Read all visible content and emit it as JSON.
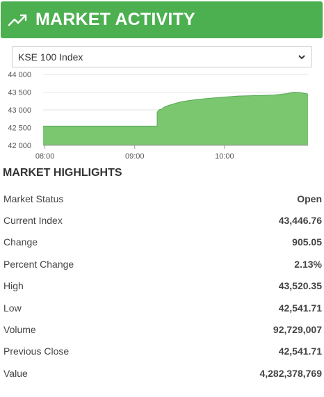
{
  "header": {
    "title": "MARKET ACTIVITY",
    "icon": "trending-up-icon",
    "color": "#4caf50"
  },
  "index_select": {
    "selected": "KSE 100 Index"
  },
  "chart_data": {
    "type": "area",
    "color": "#7ac770",
    "stroke": "#5aa855",
    "y_ticks": [
      "44 000",
      "43 500",
      "43 000",
      "42 500",
      "42 000"
    ],
    "ylim": [
      42000,
      44000
    ],
    "x_ticks": [
      "08:00",
      "09:00",
      "10:00"
    ],
    "x_tick_hours": [
      8,
      9,
      10
    ],
    "xlim": [
      7.98,
      10.93
    ],
    "x": [
      7.98,
      9.25,
      9.25,
      9.27,
      9.3,
      9.33,
      9.37,
      9.41,
      9.46,
      9.52,
      9.6,
      9.68,
      9.76,
      9.85,
      9.95,
      10.05,
      10.15,
      10.3,
      10.45,
      10.55,
      10.62,
      10.7,
      10.78,
      10.85,
      10.9,
      10.93
    ],
    "y": [
      42541.71,
      42541.71,
      42930,
      43000,
      43020,
      43080,
      43120,
      43150,
      43190,
      43230,
      43260,
      43290,
      43310,
      43330,
      43350,
      43370,
      43390,
      43400,
      43410,
      43420,
      43440,
      43460,
      43500,
      43480,
      43460,
      43446.76
    ]
  },
  "highlights": {
    "title": "MARKET HIGHLIGHTS",
    "rows": [
      {
        "label": "Market Status",
        "value": "Open"
      },
      {
        "label": "Current Index",
        "value": "43,446.76"
      },
      {
        "label": "Change",
        "value": "905.05"
      },
      {
        "label": "Percent Change",
        "value": "2.13%"
      },
      {
        "label": "High",
        "value": "43,520.35"
      },
      {
        "label": "Low",
        "value": "42,541.71"
      },
      {
        "label": "Volume",
        "value": "92,729,007"
      },
      {
        "label": "Previous Close",
        "value": "42,541.71"
      },
      {
        "label": "Value",
        "value": "4,282,378,769"
      }
    ]
  }
}
